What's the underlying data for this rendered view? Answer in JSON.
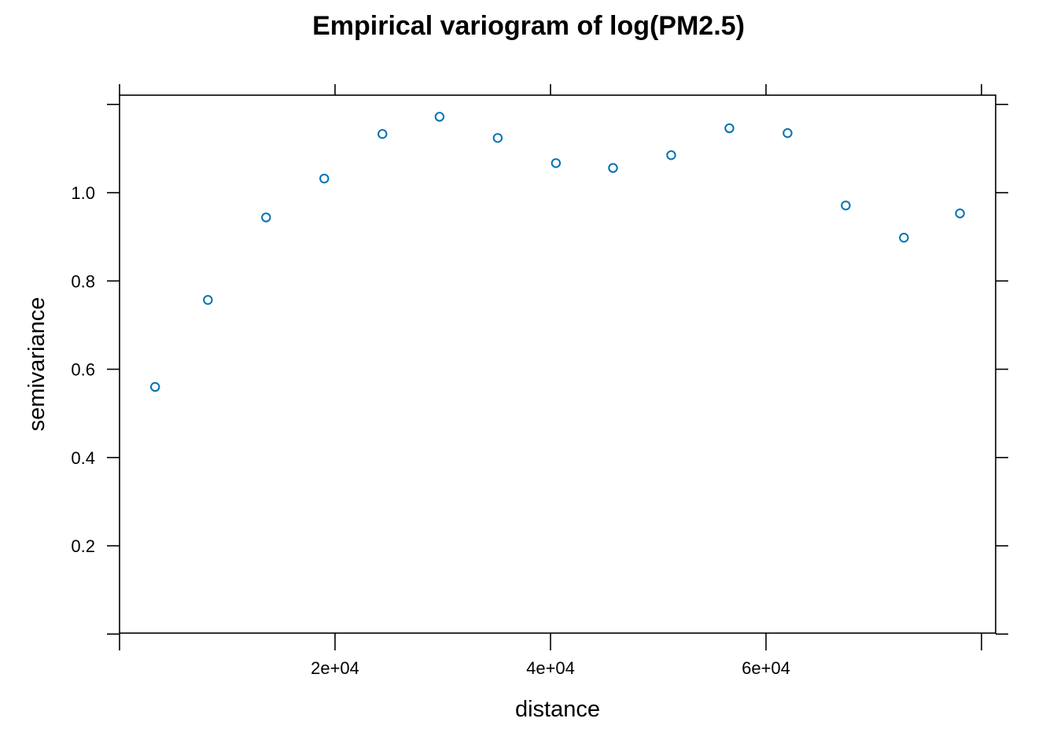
{
  "chart_data": {
    "type": "scatter",
    "title": "Empirical variogram of log(PM2.5)",
    "xlabel": "distance",
    "ylabel": "semivariance",
    "xlim": [
      0,
      80000
    ],
    "ylim": [
      0,
      1.22
    ],
    "x_ticks": [
      20000,
      40000,
      60000
    ],
    "x_tick_labels": [
      "2e+04",
      "4e+04",
      "6e+04"
    ],
    "y_ticks": [
      0.2,
      0.4,
      0.6,
      0.8,
      1.0
    ],
    "y_tick_labels": [
      "0.2",
      "0.4",
      "0.6",
      "0.8",
      "1.0"
    ],
    "grid": false,
    "marker_color": "#0072b2",
    "series": [
      {
        "x": [
          3300,
          8200,
          13600,
          19000,
          24400,
          29700,
          35100,
          40500,
          45800,
          51200,
          56600,
          62000,
          67400,
          72800,
          78000
        ],
        "y": [
          0.56,
          0.757,
          0.944,
          1.032,
          1.133,
          1.172,
          1.124,
          1.067,
          1.056,
          1.085,
          1.146,
          1.135,
          0.971,
          0.898,
          0.953
        ]
      }
    ]
  }
}
